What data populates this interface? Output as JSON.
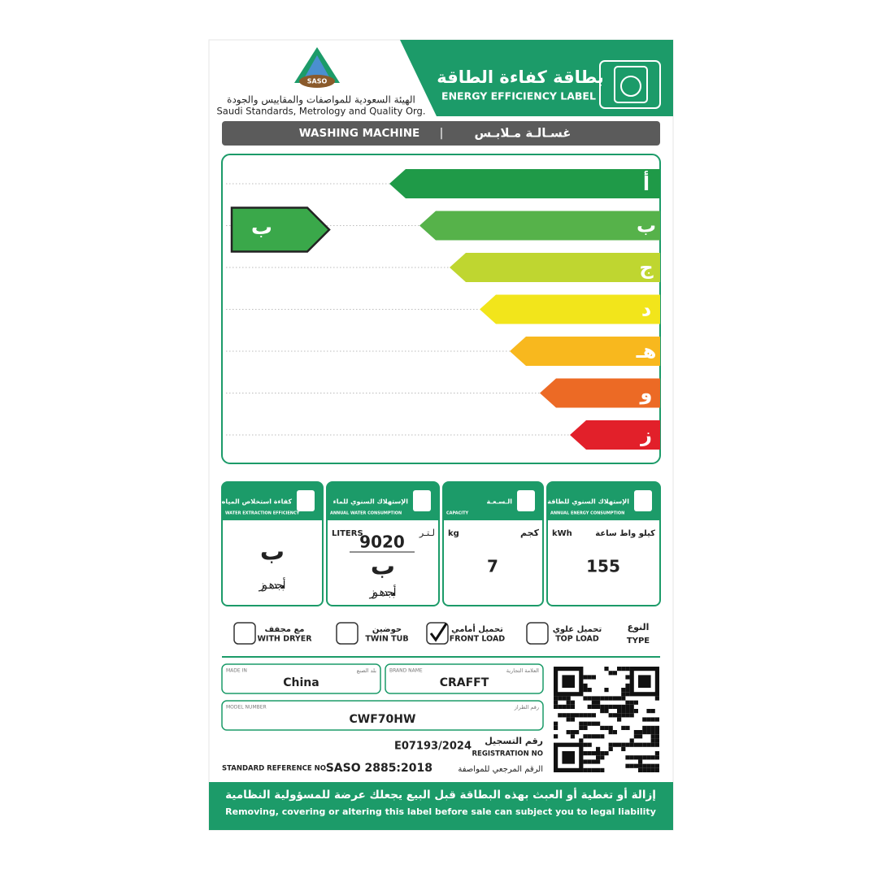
{
  "header": {
    "title_ar": "بطاقة كفاءة الطاقة",
    "title_en": "ENERGY EFFICIENCY LABEL",
    "org_ar": "الهيئة السعودية للمواصفات والمقاييس والجودة",
    "org_en": "Saudi Standards, Metrology and Quality Org.",
    "logo": "SASO"
  },
  "product": {
    "name_en": "WASHING MACHINE",
    "separator": "|",
    "name_ar": "غسـالـة مـلابـس"
  },
  "rating": {
    "classes": [
      {
        "label": "أ",
        "color": "#1f9a48"
      },
      {
        "label": "ب",
        "color": "#56b24a"
      },
      {
        "label": "ج",
        "color": "#bfd630"
      },
      {
        "label": "د",
        "color": "#f2e51b"
      },
      {
        "label": "هـ",
        "color": "#f8b81e"
      },
      {
        "label": "و",
        "color": "#ec6a25"
      },
      {
        "label": "ز",
        "color": "#e2202a"
      }
    ],
    "indicator": "ب",
    "indicator_color": "#3aa84a"
  },
  "panels": {
    "energy": {
      "title_ar": "الإستهلاك السنوي للطاقة",
      "title_en": "ANNUAL ENERGY CONSUMPTION",
      "unit_en": "kWh",
      "unit_ar": "كيلو واط ساعة",
      "value": 155
    },
    "capacity": {
      "title_ar": "الـسـعـة",
      "title_en": "CAPACITY",
      "unit_en": "kg",
      "unit_ar": "كجم",
      "value": 7
    },
    "water": {
      "title_ar": "الإستهلاك السنوي للماء",
      "title_en": "ANNUAL WATER CONSUMPTION",
      "unit_en": "LITERS",
      "unit_ar": "لـتـر",
      "value": 9020,
      "class": "ب"
    },
    "extraction": {
      "title_ar": "كفاءة استخلاص المياه",
      "title_en": "WATER EXTRACTION EFFICIENCY",
      "class": "ب"
    }
  },
  "type": {
    "label_ar": "النوع",
    "label_en": "TYPE",
    "options": [
      {
        "ar": "تحميل علوي",
        "en": "TOP LOAD",
        "checked": false
      },
      {
        "ar": "تحميل أمامي",
        "en": "FRONT LOAD",
        "checked": true
      },
      {
        "ar": "حوضين",
        "en": "TWIN TUB",
        "checked": false
      },
      {
        "ar": "مع مجفف",
        "en": "WITH DRYER",
        "checked": false
      }
    ]
  },
  "info": {
    "made_in": {
      "label_en": "MADE IN",
      "label_ar": "بلد الصنع",
      "value": "China"
    },
    "brand": {
      "label_en": "BRAND NAME",
      "label_ar": "العلامة التجارية",
      "value": "CRAFFT"
    },
    "model": {
      "label_en": "MODEL NUMBER",
      "label_ar": "رقم الطراز",
      "value": "CWF70HW"
    },
    "registration": {
      "label_ar": "رقم التسجيل",
      "label_en": "REGISTRATION NO",
      "value": "E07193/2024"
    },
    "standard": {
      "label_en": "STANDARD REFERENCE NO",
      "value": "SASO 2885:2018",
      "label_ar": "الرقم المرجعي للمواصفة"
    }
  },
  "footer": {
    "ar": "إزالة أو تغطية أو العبث بهذه البطاقة قبل البيع يجعلك عرضة للمسؤولية النظامية",
    "en": "Removing, covering or altering this label before sale can subject you to legal liability"
  }
}
